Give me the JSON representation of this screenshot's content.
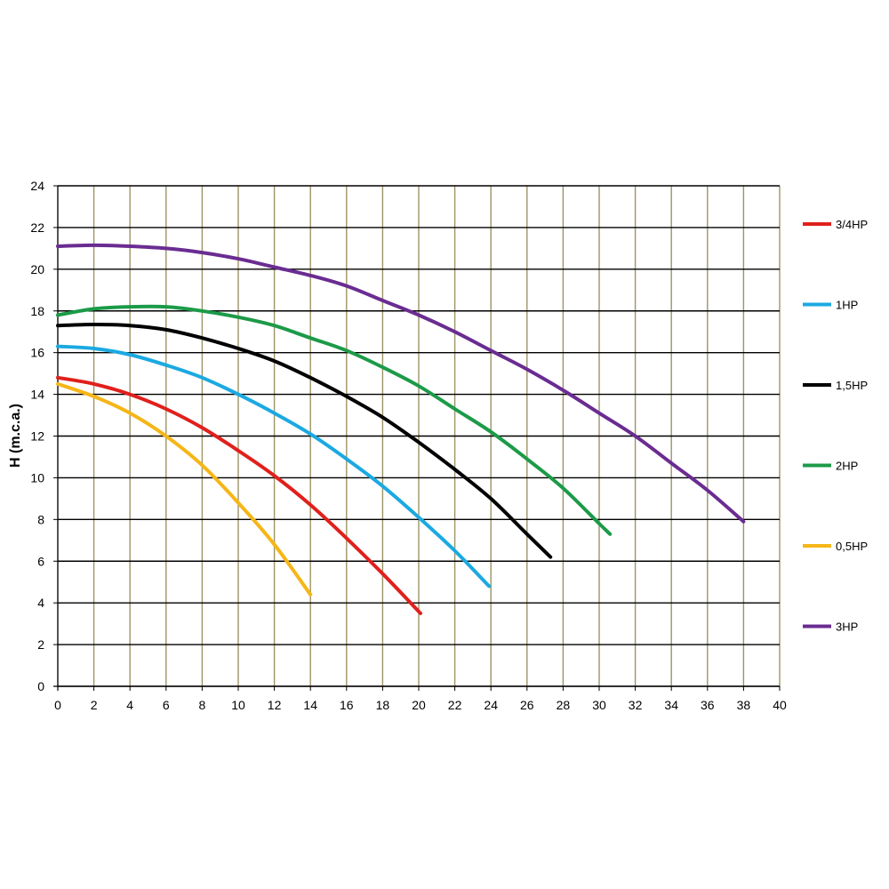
{
  "chart_data": {
    "type": "line",
    "title": "",
    "xlabel": "",
    "ylabel": "H (m.c.a.)",
    "xlim": [
      0,
      40
    ],
    "ylim": [
      0,
      24
    ],
    "xticks": [
      0,
      2,
      4,
      6,
      8,
      10,
      12,
      14,
      16,
      18,
      20,
      22,
      24,
      26,
      28,
      30,
      32,
      34,
      36,
      38,
      40
    ],
    "yticks": [
      0,
      2,
      4,
      6,
      8,
      10,
      12,
      14,
      16,
      18,
      20,
      22,
      24
    ],
    "grid": true,
    "legend_position": "right",
    "series": [
      {
        "name": "3/4HP",
        "color": "#e0201c",
        "x": [
          0,
          2,
          4,
          6,
          8,
          10,
          12,
          14,
          16,
          18,
          20.1
        ],
        "y": [
          14.8,
          14.5,
          14.0,
          13.3,
          12.4,
          11.3,
          10.1,
          8.7,
          7.1,
          5.4,
          3.5
        ]
      },
      {
        "name": "1HP",
        "color": "#1ba9e1",
        "x": [
          0,
          2,
          4,
          6,
          8,
          10,
          12,
          14,
          16,
          18,
          20,
          22,
          23.9
        ],
        "y": [
          16.3,
          16.2,
          15.9,
          15.4,
          14.8,
          14.0,
          13.1,
          12.1,
          10.9,
          9.6,
          8.1,
          6.5,
          4.8
        ]
      },
      {
        "name": "1,5HP",
        "color": "#000000",
        "x": [
          0,
          2,
          4,
          6,
          8,
          10,
          12,
          14,
          16,
          18,
          20,
          22,
          24,
          26,
          27.3
        ],
        "y": [
          17.3,
          17.35,
          17.3,
          17.1,
          16.7,
          16.2,
          15.6,
          14.8,
          13.9,
          12.9,
          11.7,
          10.4,
          9.0,
          7.3,
          6.2
        ]
      },
      {
        "name": "2HP",
        "color": "#1c9a48",
        "x": [
          0,
          2,
          4,
          6,
          8,
          10,
          12,
          14,
          16,
          18,
          20,
          22,
          24,
          26,
          28,
          30,
          30.6
        ],
        "y": [
          17.8,
          18.1,
          18.2,
          18.2,
          18.0,
          17.7,
          17.3,
          16.7,
          16.1,
          15.3,
          14.4,
          13.3,
          12.2,
          10.9,
          9.5,
          7.8,
          7.3
        ]
      },
      {
        "name": "0,5HP",
        "color": "#f5b617",
        "x": [
          0,
          2,
          4,
          6,
          8,
          10,
          12,
          14
        ],
        "y": [
          14.5,
          13.9,
          13.1,
          12.0,
          10.6,
          8.8,
          6.8,
          4.4
        ]
      },
      {
        "name": "3HP",
        "color": "#6a2c91",
        "x": [
          0,
          2,
          4,
          6,
          8,
          10,
          12,
          14,
          16,
          18,
          20,
          22,
          24,
          26,
          28,
          30,
          32,
          34,
          36,
          38
        ],
        "y": [
          21.1,
          21.15,
          21.1,
          21.0,
          20.8,
          20.5,
          20.1,
          19.7,
          19.2,
          18.5,
          17.8,
          17.0,
          16.1,
          15.2,
          14.2,
          13.1,
          12.0,
          10.7,
          9.4,
          7.9
        ]
      }
    ]
  }
}
